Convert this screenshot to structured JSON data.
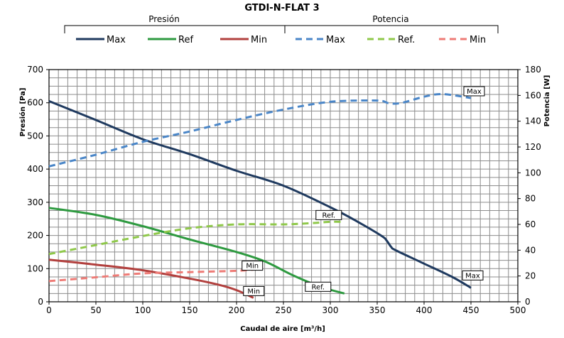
{
  "chart_data": {
    "type": "line",
    "title": "GTDI-N-FLAT 3",
    "xlabel": "Caudal de aire [m³/h]",
    "ylabel_left": "Presión [Pa]",
    "ylabel_right": "Potencia [W]",
    "xlim": [
      0,
      500
    ],
    "ylim_left": [
      0,
      700
    ],
    "ylim_right": [
      0,
      180
    ],
    "x_ticks": [
      0,
      50,
      100,
      150,
      200,
      250,
      300,
      350,
      400,
      450,
      500
    ],
    "y_ticks_left": [
      0,
      100,
      200,
      300,
      400,
      500,
      600,
      700
    ],
    "y_ticks_right": [
      0,
      20,
      40,
      60,
      80,
      100,
      120,
      140,
      160,
      180
    ],
    "grid": true,
    "legend_groups": [
      {
        "title": "Presión",
        "entries": [
          "Max",
          "Ref",
          "Min"
        ]
      },
      {
        "title": "Potencia",
        "entries": [
          "Max",
          "Ref.",
          "Min"
        ]
      }
    ],
    "series": [
      {
        "name": "Max",
        "group": "Presión",
        "axis": "left",
        "style": "solid",
        "color": "#1f3a5f",
        "x": [
          0,
          50,
          100,
          150,
          200,
          250,
          300,
          330,
          355,
          360,
          365,
          370,
          400,
          430,
          450
        ],
        "y": [
          605,
          548,
          490,
          445,
          395,
          350,
          285,
          240,
          198,
          185,
          165,
          155,
          115,
          75,
          42
        ]
      },
      {
        "name": "Ref",
        "group": "Presión",
        "axis": "left",
        "style": "solid",
        "color": "#2e9a40",
        "x": [
          0,
          50,
          100,
          150,
          200,
          230,
          260,
          290,
          315
        ],
        "y": [
          283,
          262,
          228,
          188,
          150,
          122,
          80,
          45,
          25
        ]
      },
      {
        "name": "Min",
        "group": "Presión",
        "axis": "left",
        "style": "solid",
        "color": "#b2403e",
        "x": [
          0,
          50,
          100,
          150,
          180,
          200,
          218
        ],
        "y": [
          127,
          112,
          95,
          70,
          52,
          35,
          12
        ]
      },
      {
        "name": "Max",
        "group": "Potencia",
        "axis": "right",
        "style": "dashed",
        "color": "#4a86c8",
        "x": [
          0,
          50,
          100,
          150,
          200,
          250,
          300,
          350,
          362,
          375,
          400,
          420,
          450
        ],
        "y": [
          105,
          114,
          124,
          132,
          141,
          149,
          155,
          156,
          154,
          154,
          159,
          161,
          158
        ]
      },
      {
        "name": "Ref.",
        "group": "Potencia",
        "axis": "right",
        "style": "dashed",
        "color": "#8fc84a",
        "x": [
          0,
          50,
          100,
          150,
          200,
          250,
          280,
          300,
          315
        ],
        "y": [
          37,
          44,
          51,
          57,
          60,
          60,
          61,
          62,
          62
        ]
      },
      {
        "name": "Min",
        "group": "Potencia",
        "axis": "right",
        "style": "dashed",
        "color": "#ee7b76",
        "x": [
          0,
          50,
          100,
          150,
          200,
          218
        ],
        "y": [
          16,
          19,
          22,
          23,
          24,
          25
        ]
      }
    ],
    "annotations": [
      {
        "text": "Max",
        "series_index": 3
      },
      {
        "text": "Max",
        "series_index": 0
      },
      {
        "text": "Ref.",
        "series_index": 4
      },
      {
        "text": "Ref.",
        "series_index": 1
      },
      {
        "text": "Min",
        "series_index": 5
      },
      {
        "text": "Min",
        "series_index": 2
      }
    ]
  }
}
